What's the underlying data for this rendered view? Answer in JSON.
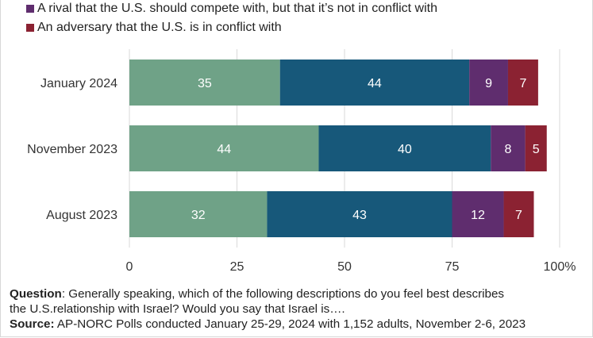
{
  "legend": [
    {
      "label": "A rival that the U.S. should compete with, but that it’s not in conflict with",
      "color": "#5f2d6e"
    },
    {
      "label": "An adversary that the U.S. is in conflict with",
      "color": "#8b2232"
    }
  ],
  "chart_data": {
    "type": "bar",
    "orientation": "horizontal",
    "stacked": true,
    "categories": [
      "January 2024",
      "November 2023",
      "August 2023"
    ],
    "series": [
      {
        "values": [
          35,
          44,
          32
        ],
        "color": "#6fa287"
      },
      {
        "values": [
          44,
          40,
          43
        ],
        "color": "#17587a"
      },
      {
        "name": "A rival that the U.S. should compete with, but that it’s not in conflict with",
        "values": [
          9,
          8,
          12
        ],
        "color": "#5f2d6e"
      },
      {
        "name": "An adversary that the U.S. is in conflict with",
        "values": [
          7,
          5,
          7
        ],
        "color": "#8b2232"
      }
    ],
    "xlim": [
      0,
      100
    ],
    "xticks": [
      "0",
      "25",
      "50",
      "75",
      "100%"
    ],
    "grid": true,
    "data_labels": true
  },
  "footer": {
    "question_label": "Question",
    "question_text": ": Generally speaking, which of the following descriptions do you feel best describes",
    "question_text_line2": "the U.S.relationship with Israel? Would you say that Israel is….",
    "source_label": "Source:",
    "source_text": " AP-NORC Polls conducted January 25-29, 2024 with 1,152 adults, November 2-6, 2023"
  }
}
